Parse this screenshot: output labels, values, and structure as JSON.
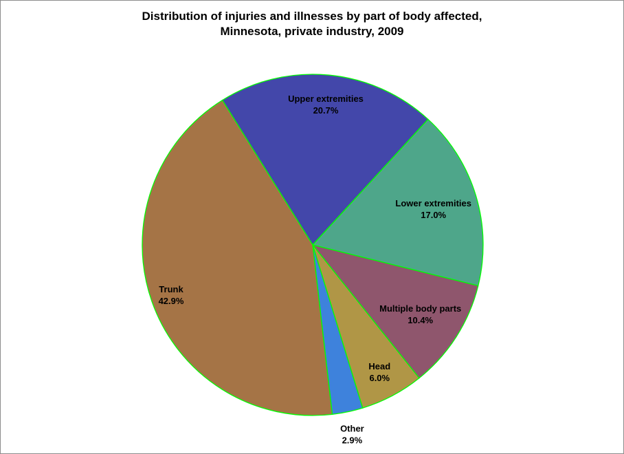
{
  "chart_data": {
    "type": "pie",
    "title_lines": [
      "Distribution of injuries and illnesses by part of body affected,",
      "Minnesota, private industry, 2009"
    ],
    "slices": [
      {
        "label": "Upper extremities",
        "value_label": "20.7%",
        "value": 20.7,
        "color": "#4347AA"
      },
      {
        "label": "Lower extremities",
        "value_label": "17.0%",
        "value": 17.0,
        "color": "#4EA68A"
      },
      {
        "label": "Multiple body parts",
        "value_label": "10.4%",
        "value": 10.4,
        "color": "#8F566D"
      },
      {
        "label": "Head",
        "value_label": "6.0%",
        "value": 6.0,
        "color": "#B09646"
      },
      {
        "label": "Other",
        "value_label": "2.9%",
        "value": 2.9,
        "color": "#3E82DC"
      },
      {
        "label": "Trunk",
        "value_label": "42.9%",
        "value": 42.9,
        "color": "#A57446"
      }
    ],
    "start_angle_deg": -32,
    "slice_border_color": "#00FF00"
  }
}
